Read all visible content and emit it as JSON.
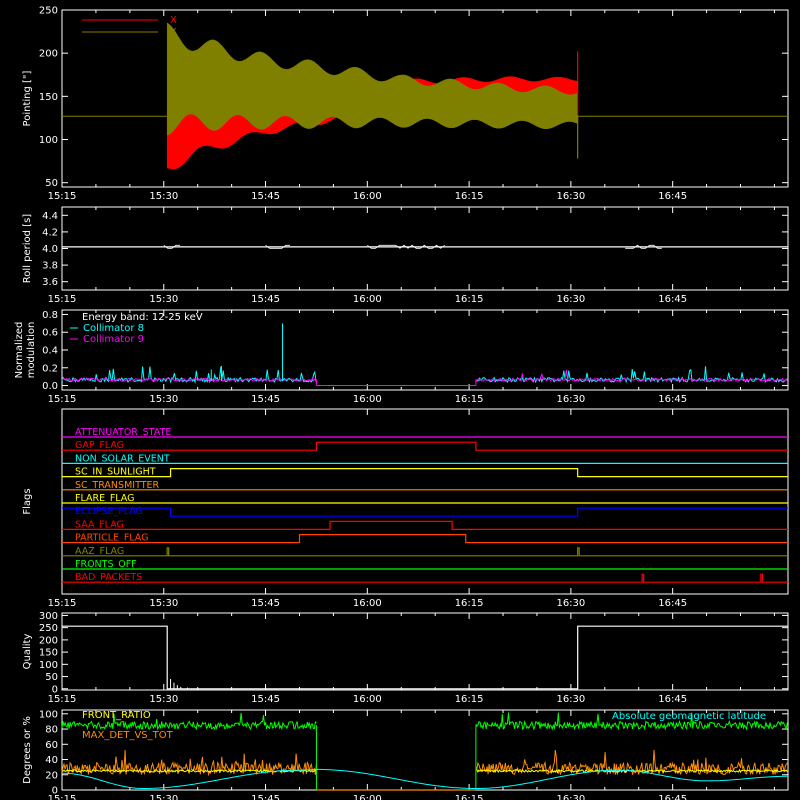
{
  "time_axis": {
    "labels": [
      "15:15",
      "15:30",
      "15:45",
      "16:00",
      "16:15",
      "16:30",
      "16:45"
    ],
    "minutes": [
      915,
      930,
      945,
      960,
      975,
      990,
      1005
    ],
    "range": [
      915,
      1022
    ]
  },
  "colors": {
    "x": "#ff0000",
    "y": "#808000",
    "white": "#ffffff",
    "cyan": "#00ffff",
    "magenta": "#ff00ff",
    "green": "#00ff00",
    "orange": "#ff8c00",
    "yellow": "#ffff00"
  },
  "chart_data": [
    {
      "id": "pointing",
      "type": "line",
      "ylabel": "Pointing [\"]",
      "ylim": [
        45,
        250
      ],
      "yticks": [
        50,
        100,
        150,
        200,
        250
      ],
      "legend": [
        {
          "name": "X",
          "color": "#ff0000"
        },
        {
          "name": "Y",
          "color": "#808000"
        }
      ],
      "baseline": 127,
      "series": [
        {
          "name": "X",
          "color": "#ff0000",
          "envelope": [
            {
              "t": 930.5,
              "lo": 60,
              "hi": 140
            },
            {
              "t": 935,
              "lo": 80,
              "hi": 140
            },
            {
              "t": 945,
              "lo": 105,
              "hi": 150
            },
            {
              "t": 955,
              "lo": 120,
              "hi": 160
            },
            {
              "t": 965,
              "lo": 132,
              "hi": 170
            },
            {
              "t": 980,
              "lo": 140,
              "hi": 173
            },
            {
              "t": 991,
              "lo": 145,
              "hi": 172
            }
          ]
        },
        {
          "name": "Y",
          "color": "#808000",
          "envelope": [
            {
              "t": 930.5,
              "lo": 105,
              "hi": 235
            },
            {
              "t": 935,
              "lo": 110,
              "hi": 220
            },
            {
              "t": 945,
              "lo": 112,
              "hi": 200
            },
            {
              "t": 955,
              "lo": 113,
              "hi": 188
            },
            {
              "t": 965,
              "lo": 114,
              "hi": 175
            },
            {
              "t": 980,
              "lo": 113,
              "hi": 165
            },
            {
              "t": 991,
              "lo": 112,
              "hi": 160
            }
          ]
        }
      ]
    },
    {
      "id": "roll",
      "type": "line",
      "ylabel": "Roll period [s]",
      "ylim": [
        3.5,
        4.5
      ],
      "yticks": [
        3.6,
        3.8,
        4.0,
        4.2,
        4.4
      ],
      "ytick_labels": [
        "3.6",
        "3.8",
        "4.0",
        "4.2",
        "4.4"
      ],
      "series": [
        {
          "name": "",
          "color": "#ffffff",
          "value": 4.02
        }
      ]
    },
    {
      "id": "modulation",
      "type": "line",
      "ylabel": "Normalized modulation",
      "ylim": [
        -0.05,
        0.85
      ],
      "yticks": [
        0.0,
        0.2,
        0.4,
        0.6,
        0.8
      ],
      "ytick_labels": [
        "0.0",
        "0.2",
        "0.4",
        "0.6",
        "0.8"
      ],
      "legend": [
        {
          "name": "Energy band: 12-25 keV",
          "color": "#ffffff"
        },
        {
          "name": "Collimator 8",
          "color": "#00ffff"
        },
        {
          "name": "Collimator 9",
          "color": "#ff00ff"
        }
      ],
      "gap": [
        952.5,
        976
      ],
      "spikes": [
        {
          "t": 947.5,
          "v": 0.7
        },
        {
          "t": 938.5,
          "v": 0.22
        },
        {
          "t": 937,
          "v": 0.18
        }
      ]
    },
    {
      "id": "flags",
      "type": "line",
      "ylabel": "Flags",
      "flags": [
        {
          "name": "ATTENUATOR_STATE",
          "color": "#ff00ff",
          "steps": []
        },
        {
          "name": "GAP_FLAG",
          "color": "#ff0000",
          "steps": [
            [
              952.5,
              976
            ]
          ]
        },
        {
          "name": "NON_SOLAR_EVENT",
          "color": "#00ffff",
          "steps": []
        },
        {
          "name": "SC_IN_SUNLIGHT",
          "color": "#ffff00",
          "steps": [
            [
              931,
              991
            ]
          ]
        },
        {
          "name": "SC_TRANSMITTER",
          "color": "#ff8c00",
          "steps": []
        },
        {
          "name": "FLARE_FLAG",
          "color": "#ffff00",
          "steps": []
        },
        {
          "name": "ECLIPSE_FLAG",
          "color": "#0000ff",
          "steps_down": [
            [
              931,
              991
            ]
          ]
        },
        {
          "name": "SAA_FLAG",
          "color": "#ff0000",
          "steps": [
            [
              954.5,
              972.5
            ]
          ]
        },
        {
          "name": "PARTICLE_FLAG",
          "color": "#ff4500",
          "steps": [
            [
              950,
              974.5
            ]
          ]
        },
        {
          "name": "AAZ_FLAG",
          "color": "#808000",
          "pulses": [
            930.5,
            991
          ]
        },
        {
          "name": "FRONTS_OFF",
          "color": "#00ff00",
          "steps": []
        },
        {
          "name": "BAD_PACKETS",
          "color": "#ff0000",
          "pulses": [
            1000.5,
            1018
          ]
        }
      ]
    },
    {
      "id": "quality",
      "type": "line",
      "ylabel": "Quality",
      "ylim": [
        -5,
        310
      ],
      "yticks": [
        0,
        50,
        100,
        150,
        200,
        250,
        300
      ],
      "ytick_labels": [
        "0",
        "50",
        "100",
        "150",
        "200",
        "250",
        "300"
      ],
      "series": [
        {
          "name": "",
          "color": "#ffffff",
          "points": [
            [
              915,
              256
            ],
            [
              930.5,
              256
            ],
            [
              930.5,
              0
            ],
            [
              991,
              0
            ],
            [
              991,
              256
            ],
            [
              1022,
              256
            ]
          ]
        }
      ]
    },
    {
      "id": "geomag",
      "type": "line",
      "ylabel": "Degrees or %",
      "ylim": [
        0,
        105
      ],
      "yticks": [
        0,
        20,
        40,
        60,
        80,
        100
      ],
      "ytick_labels": [
        "0",
        "20",
        "40",
        "60",
        "80",
        "100"
      ],
      "legend": [
        {
          "name": "FRONT_RATIO",
          "color": "#ffff00"
        },
        {
          "name": "MAX_DET_VS_TOT",
          "color": "#ff8c00"
        },
        {
          "name": "Absolute geomagnetic latitude",
          "color": "#00ffff"
        }
      ],
      "gap": [
        952.5,
        976
      ],
      "green_level": 85,
      "orange_level": 28,
      "yellow_level": 25,
      "cyan_lat": [
        [
          915,
          22
        ],
        [
          927,
          2
        ],
        [
          950,
          26
        ],
        [
          952.5,
          27
        ],
        [
          976,
          2
        ],
        [
          997,
          26
        ],
        [
          1010,
          12
        ],
        [
          1022,
          18
        ]
      ]
    }
  ]
}
